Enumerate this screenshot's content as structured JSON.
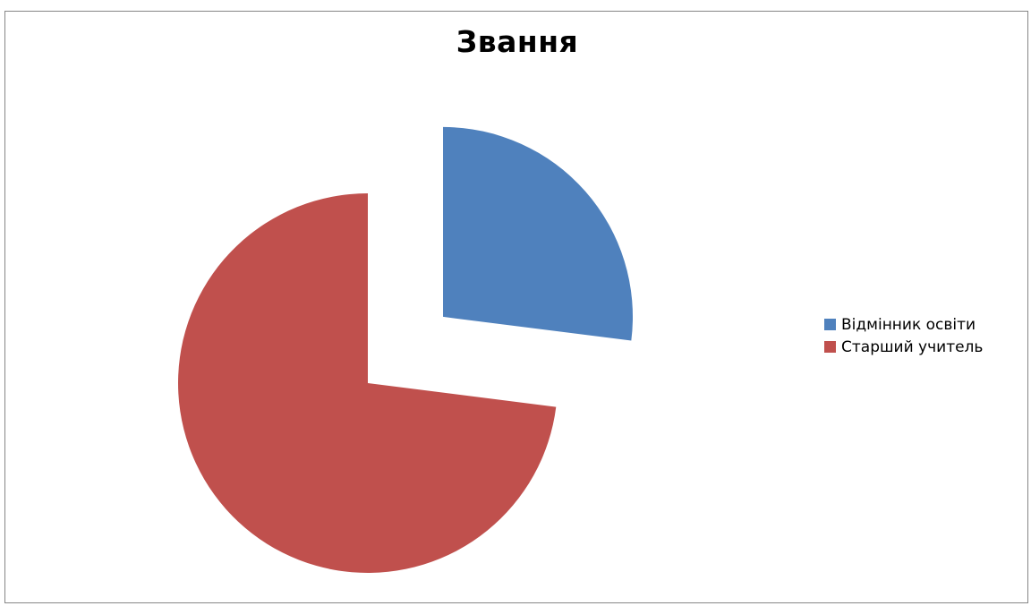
{
  "chart_data": {
    "type": "pie",
    "title": "Звання",
    "categories": [
      "Відмінник освіти",
      "Старший учитель"
    ],
    "values": [
      27,
      73
    ],
    "colors": [
      "#4f81bd",
      "#c0504d"
    ],
    "exploded": true,
    "legend_position": "right",
    "start_angle": "12 o'clock, clockwise"
  }
}
